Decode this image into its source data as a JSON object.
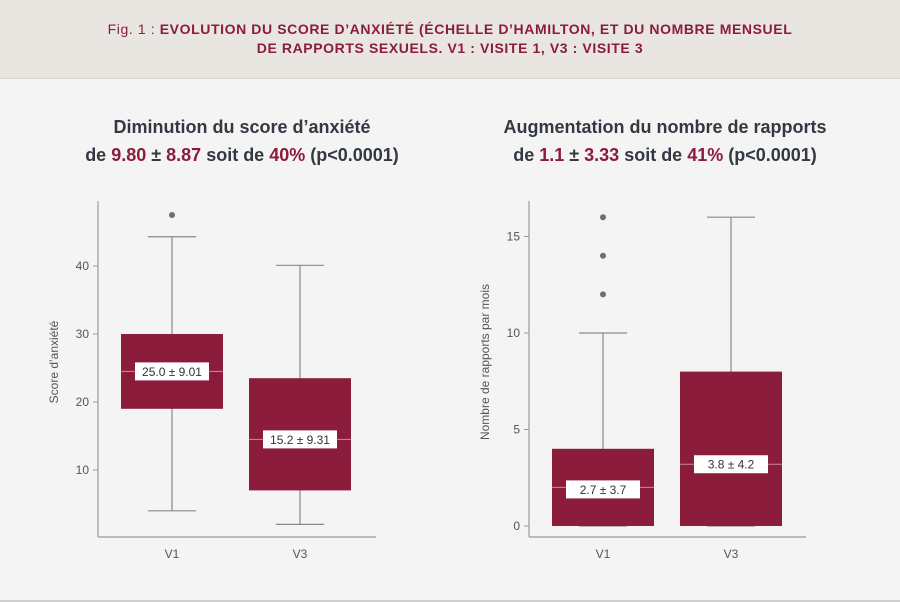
{
  "figure": {
    "prefix": "Fig. 1 : ",
    "title_line1": "EVOLUTION DU SCORE D’ANXIÉTÉ (ÉCHELLE D’HAMILTON, ET DU NOMBRE MENSUEL",
    "title_line2": "DE RAPPORTS SEXUELS. V1 : VISITE 1, V3 : VISITE 3"
  },
  "colors": {
    "accent": "#8b1c3c",
    "whisker": "#8a8a8a",
    "outlier": "#6e6e6e",
    "axis": "#9a9a9a",
    "title": "#333942",
    "header_bg": "#e9e6e2",
    "background": "#f4f4f4"
  },
  "left_panel": {
    "title_line1": "Diminution du score d’anxiété",
    "title_line2_pre": "de ",
    "title_line2_val1": "9.80",
    "title_line2_pm": " ± ",
    "title_line2_val2": "8.87",
    "title_line2_mid": " soit de ",
    "title_line2_pct": "40%",
    "title_line2_post": " (p<0.0001)"
  },
  "right_panel": {
    "title_line1": "Augmentation du nombre de rapports",
    "title_line2_pre": "de ",
    "title_line2_val1": "1.1",
    "title_line2_pm": " ± ",
    "title_line2_val2": "3.33",
    "title_line2_mid": " soit de ",
    "title_line2_pct": "41%",
    "title_line2_post": " (p<0.0001)"
  },
  "chart_data": [
    {
      "type": "box",
      "ylabel": "Score d’anxiété",
      "ylim": [
        0,
        49
      ],
      "yticks": [
        10,
        20,
        30,
        40
      ],
      "categories": [
        "V1",
        "V3"
      ],
      "boxes": [
        {
          "category": "V1",
          "whisker_low": 4,
          "q1": 19,
          "median": 24.5,
          "q3": 30,
          "whisker_high": 44.3,
          "outliers": [
            47.5
          ],
          "label": "25.0 ± 9.01"
        },
        {
          "category": "V3",
          "whisker_low": 2,
          "q1": 7,
          "median": 14.5,
          "q3": 23.5,
          "whisker_high": 40.1,
          "outliers": [],
          "label": "15.2 ± 9.31"
        }
      ]
    },
    {
      "type": "box",
      "ylabel": "Nombre de rapports par mois",
      "ylim": [
        0,
        16.8
      ],
      "yticks": [
        0,
        5,
        10,
        15
      ],
      "categories": [
        "V1",
        "V3"
      ],
      "boxes": [
        {
          "category": "V1",
          "whisker_low": 0,
          "q1": 0,
          "median": 2,
          "q3": 4,
          "whisker_high": 10,
          "outliers": [
            12,
            14,
            16
          ],
          "label": "2.7 ± 3.7"
        },
        {
          "category": "V3",
          "whisker_low": 0,
          "q1": 0,
          "median": 3.2,
          "q3": 8,
          "whisker_high": 16,
          "outliers": [],
          "label": "3.8 ± 4.2"
        }
      ]
    }
  ]
}
